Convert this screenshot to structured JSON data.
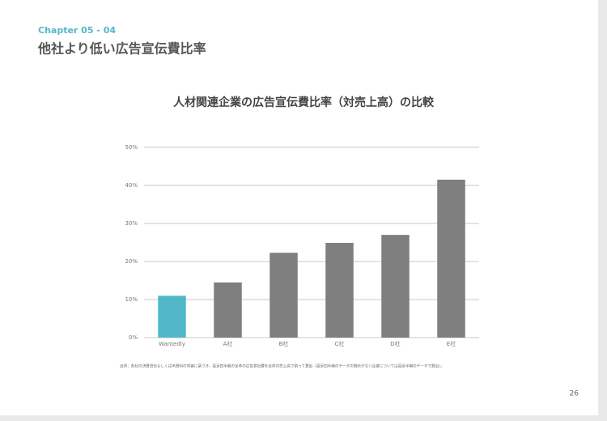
{
  "header": {
    "chapter": "Chapter 05 - 04",
    "title": "他社より低い広告宣伝費比率"
  },
  "chart_data": {
    "type": "bar",
    "title": "人材関連企業の広告宣伝費比率（対売上高）の比較",
    "categories": [
      "Wantedly",
      "A社",
      "B社",
      "C社",
      "D社",
      "E社"
    ],
    "values": [
      11,
      14.5,
      22.3,
      24.9,
      27,
      41.5
    ],
    "colors": [
      "#52b8c9",
      "#7f7f7f",
      "#7f7f7f",
      "#7f7f7f",
      "#7f7f7f",
      "#7f7f7f"
    ],
    "ylim": [
      0,
      50
    ],
    "yticks": [
      {
        "value": 0,
        "label": "0%"
      },
      {
        "value": 10,
        "label": "10%"
      },
      {
        "value": 20,
        "label": "20%"
      },
      {
        "value": 30,
        "label": "30%"
      },
      {
        "value": 40,
        "label": "40%"
      },
      {
        "value": 50,
        "label": "50%"
      }
    ],
    "grid": true
  },
  "source": "出所：各社の決算短信もしくはIR資料の内容に基づき、直近四半期の全体の広告宣伝費を全体の売上高で割って算出（直近四半期のデータの開示がない企業については直近半期のデータで算出）。",
  "page_number": "26"
}
